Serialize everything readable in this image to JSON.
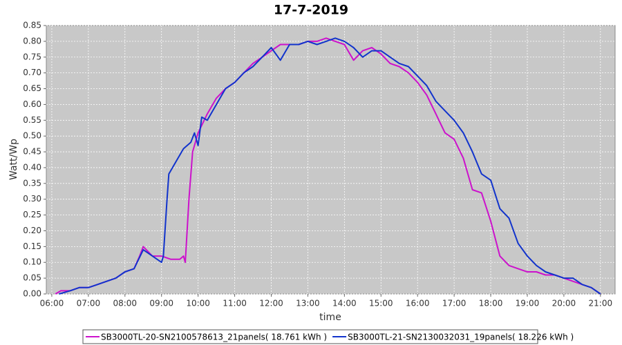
{
  "chart_data": {
    "type": "line",
    "title": "17-7-2019",
    "x_label": "time",
    "y_label": "Watt/Wp",
    "xlim": [
      5.85,
      21.4
    ],
    "ylim": [
      0,
      0.85
    ],
    "grid": true,
    "legend": "bottom",
    "xticks": [
      {
        "value": 6,
        "label": "06:00"
      },
      {
        "value": 7,
        "label": "07:00"
      },
      {
        "value": 8,
        "label": "08:00"
      },
      {
        "value": 9,
        "label": "09:00"
      },
      {
        "value": 10,
        "label": "10:00"
      },
      {
        "value": 11,
        "label": "11:00"
      },
      {
        "value": 12,
        "label": "12:00"
      },
      {
        "value": 13,
        "label": "13:00"
      },
      {
        "value": 14,
        "label": "14:00"
      },
      {
        "value": 15,
        "label": "15:00"
      },
      {
        "value": 16,
        "label": "16:00"
      },
      {
        "value": 17,
        "label": "17:00"
      },
      {
        "value": 18,
        "label": "18:00"
      },
      {
        "value": 19,
        "label": "19:00"
      },
      {
        "value": 20,
        "label": "20:00"
      },
      {
        "value": 21,
        "label": "21:00"
      }
    ],
    "yticks": [
      {
        "value": 0,
        "label": "0.00"
      },
      {
        "value": 0.05,
        "label": "0.05"
      },
      {
        "value": 0.1,
        "label": "0.10"
      },
      {
        "value": 0.15,
        "label": "0.15"
      },
      {
        "value": 0.2,
        "label": "0.20"
      },
      {
        "value": 0.25,
        "label": "0.25"
      },
      {
        "value": 0.3,
        "label": "0.30"
      },
      {
        "value": 0.35,
        "label": "0.35"
      },
      {
        "value": 0.4,
        "label": "0.40"
      },
      {
        "value": 0.45,
        "label": "0.45"
      },
      {
        "value": 0.5,
        "label": "0.50"
      },
      {
        "value": 0.55,
        "label": "0.55"
      },
      {
        "value": 0.6,
        "label": "0.60"
      },
      {
        "value": 0.65,
        "label": "0.65"
      },
      {
        "value": 0.7,
        "label": "0.70"
      },
      {
        "value": 0.75,
        "label": "0.75"
      },
      {
        "value": 0.8,
        "label": "0.80"
      },
      {
        "value": 0.85,
        "label": "0.85"
      }
    ],
    "series": [
      {
        "name": "SB3000TL-20-SN2100578613_21panels( 18.761 kWh )",
        "color": "#cc11cc",
        "x": [
          6.1,
          6.25,
          6.5,
          6.75,
          7.0,
          7.25,
          7.5,
          7.75,
          8.0,
          8.25,
          8.4,
          8.5,
          8.75,
          9.0,
          9.25,
          9.5,
          9.6,
          9.65,
          9.75,
          9.85,
          10.0,
          10.25,
          10.5,
          10.75,
          11.0,
          11.25,
          11.5,
          11.75,
          12.0,
          12.25,
          12.5,
          12.75,
          13.0,
          13.25,
          13.5,
          13.75,
          14.0,
          14.25,
          14.5,
          14.75,
          15.0,
          15.25,
          15.5,
          15.75,
          16.0,
          16.25,
          16.5,
          16.75,
          17.0,
          17.25,
          17.5,
          17.75,
          18.0,
          18.25,
          18.5,
          18.75,
          19.0,
          19.25,
          19.5,
          19.75,
          20.0,
          20.25,
          20.5,
          20.75,
          21.0
        ],
        "values": [
          0,
          0.01,
          0.01,
          0.02,
          0.02,
          0.03,
          0.04,
          0.05,
          0.07,
          0.08,
          0.12,
          0.15,
          0.12,
          0.12,
          0.11,
          0.11,
          0.12,
          0.1,
          0.3,
          0.45,
          0.51,
          0.57,
          0.62,
          0.65,
          0.67,
          0.7,
          0.73,
          0.75,
          0.77,
          0.79,
          0.79,
          0.79,
          0.8,
          0.8,
          0.81,
          0.8,
          0.79,
          0.74,
          0.77,
          0.78,
          0.76,
          0.73,
          0.72,
          0.7,
          0.67,
          0.63,
          0.57,
          0.51,
          0.49,
          0.43,
          0.33,
          0.32,
          0.23,
          0.12,
          0.09,
          0.08,
          0.07,
          0.07,
          0.06,
          0.06,
          0.05,
          0.04,
          0.03,
          0.02,
          0
        ]
      },
      {
        "name": "SB3000TL-21-SN2130032031_19panels( 18.226 kWh )",
        "color": "#1133cc",
        "x": [
          6.2,
          6.5,
          6.75,
          7.0,
          7.25,
          7.5,
          7.75,
          8.0,
          8.25,
          8.5,
          8.75,
          9.0,
          9.05,
          9.15,
          9.2,
          9.4,
          9.6,
          9.8,
          9.9,
          10.0,
          10.1,
          10.25,
          10.5,
          10.75,
          11.0,
          11.25,
          11.5,
          11.75,
          12.0,
          12.25,
          12.5,
          12.75,
          13.0,
          13.25,
          13.5,
          13.75,
          14.0,
          14.25,
          14.5,
          14.75,
          15.0,
          15.25,
          15.5,
          15.75,
          16.0,
          16.25,
          16.5,
          16.75,
          17.0,
          17.25,
          17.5,
          17.75,
          18.0,
          18.25,
          18.5,
          18.75,
          19.0,
          19.25,
          19.5,
          19.75,
          20.0,
          20.25,
          20.5,
          20.75,
          21.0
        ],
        "values": [
          0,
          0.01,
          0.02,
          0.02,
          0.03,
          0.04,
          0.05,
          0.07,
          0.08,
          0.14,
          0.12,
          0.1,
          0.12,
          0.3,
          0.38,
          0.42,
          0.46,
          0.48,
          0.51,
          0.47,
          0.56,
          0.55,
          0.6,
          0.65,
          0.67,
          0.7,
          0.72,
          0.75,
          0.78,
          0.74,
          0.79,
          0.79,
          0.8,
          0.79,
          0.8,
          0.81,
          0.8,
          0.78,
          0.75,
          0.77,
          0.77,
          0.75,
          0.73,
          0.72,
          0.69,
          0.66,
          0.61,
          0.58,
          0.55,
          0.51,
          0.45,
          0.38,
          0.36,
          0.27,
          0.24,
          0.16,
          0.12,
          0.09,
          0.07,
          0.06,
          0.05,
          0.05,
          0.03,
          0.02,
          0
        ]
      }
    ]
  }
}
